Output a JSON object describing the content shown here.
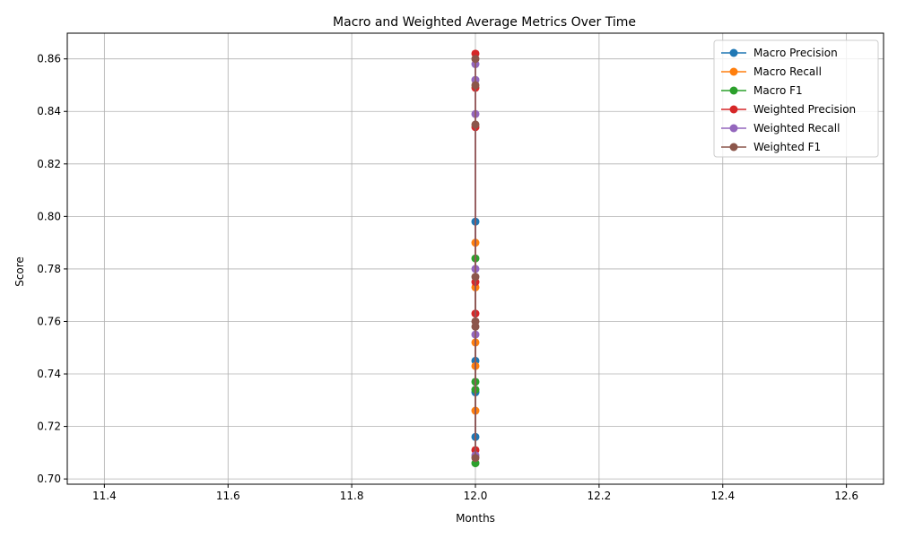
{
  "chart_data": {
    "type": "line",
    "title": "Macro and Weighted Average Metrics Over Time",
    "xlabel": "Months",
    "ylabel": "Score",
    "xlim": [
      11.34,
      12.66
    ],
    "ylim": [
      0.698,
      0.8698
    ],
    "x_ticks": [
      11.4,
      11.6,
      11.8,
      12.0,
      12.2,
      12.4,
      12.6
    ],
    "x_tick_labels": [
      "11.4",
      "11.6",
      "11.8",
      "12.0",
      "12.2",
      "12.4",
      "12.6"
    ],
    "y_ticks": [
      0.7,
      0.72,
      0.74,
      0.76,
      0.78,
      0.8,
      0.82,
      0.84,
      0.86
    ],
    "y_tick_labels": [
      "0.70",
      "0.72",
      "0.74",
      "0.76",
      "0.78",
      "0.80",
      "0.82",
      "0.84",
      "0.86"
    ],
    "grid": true,
    "legend_position": "top-right",
    "series": [
      {
        "name": "Macro Precision",
        "color": "#1f77b4",
        "x": [
          12,
          12,
          12,
          12
        ],
        "values": [
          0.798,
          0.745,
          0.733,
          0.716
        ]
      },
      {
        "name": "Macro Recall",
        "color": "#ff7f0e",
        "x": [
          12,
          12,
          12,
          12,
          12
        ],
        "values": [
          0.79,
          0.773,
          0.752,
          0.743,
          0.726
        ]
      },
      {
        "name": "Macro F1",
        "color": "#2ca02c",
        "x": [
          12,
          12,
          12,
          12
        ],
        "values": [
          0.784,
          0.737,
          0.734,
          0.706
        ]
      },
      {
        "name": "Weighted Precision",
        "color": "#d62728",
        "x": [
          12,
          12,
          12,
          12,
          12,
          12
        ],
        "values": [
          0.862,
          0.849,
          0.834,
          0.775,
          0.763,
          0.711
        ]
      },
      {
        "name": "Weighted Recall",
        "color": "#9467bd",
        "x": [
          12,
          12,
          12,
          12,
          12,
          12
        ],
        "values": [
          0.858,
          0.852,
          0.839,
          0.78,
          0.755,
          0.709
        ]
      },
      {
        "name": "Weighted F1",
        "color": "#8c564b",
        "x": [
          12,
          12,
          12,
          12,
          12,
          12,
          12
        ],
        "values": [
          0.86,
          0.85,
          0.835,
          0.777,
          0.758,
          0.76,
          0.708
        ]
      }
    ]
  }
}
